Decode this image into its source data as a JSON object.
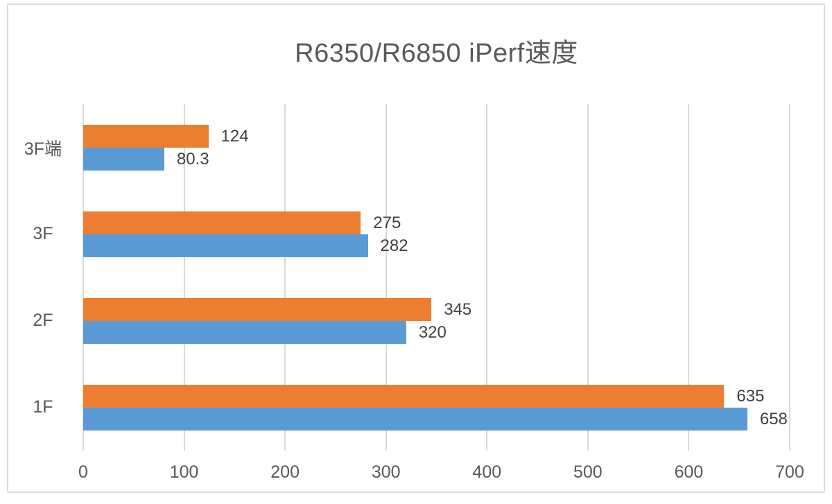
{
  "chart_data": {
    "type": "bar",
    "orientation": "horizontal",
    "title": "R6350/R6850 iPerf速度",
    "categories": [
      "3F端",
      "3F",
      "2F",
      "1F"
    ],
    "series": [
      {
        "name": "orange-series",
        "color": "#ED7D31",
        "values": [
          124,
          275,
          345,
          635
        ]
      },
      {
        "name": "blue-series",
        "color": "#5B9BD5",
        "values": [
          80.3,
          282,
          320,
          658
        ]
      }
    ],
    "data_labels": [
      [
        "124",
        "80.3"
      ],
      [
        "275",
        "282"
      ],
      [
        "345",
        "320"
      ],
      [
        "635",
        "658"
      ]
    ],
    "x_axis": {
      "min": 0,
      "max": 700,
      "tick_interval": 100,
      "ticks": [
        0,
        100,
        200,
        300,
        400,
        500,
        600,
        700
      ]
    },
    "legend": "none",
    "grid": "vertical",
    "colors": {
      "gridline": "#D9D9D9",
      "frame_border": "#D9D9D9",
      "title_text": "#595959",
      "axis_text": "#595959",
      "data_label_text": "#404040"
    }
  }
}
